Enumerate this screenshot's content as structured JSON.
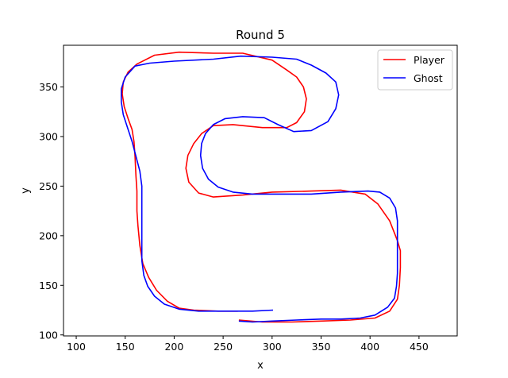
{
  "chart_data": {
    "type": "line",
    "title": "Round 5",
    "xlabel": "x",
    "ylabel": "y",
    "xlim": [
      87,
      489
    ],
    "ylim": [
      99,
      392
    ],
    "xticks": [
      100,
      150,
      200,
      250,
      300,
      350,
      400,
      450
    ],
    "yticks": [
      100,
      150,
      200,
      250,
      300,
      350
    ],
    "grid": false,
    "legend_position": "top-right",
    "series": [
      {
        "name": "Player",
        "color": "#ff0000",
        "points": [
          [
            266,
            115
          ],
          [
            290,
            113
          ],
          [
            320,
            113
          ],
          [
            350,
            114
          ],
          [
            380,
            115
          ],
          [
            405,
            117
          ],
          [
            420,
            124
          ],
          [
            428,
            136
          ],
          [
            430,
            150
          ],
          [
            431,
            168
          ],
          [
            431,
            185
          ],
          [
            428,
            195
          ],
          [
            420,
            215
          ],
          [
            408,
            232
          ],
          [
            395,
            242
          ],
          [
            370,
            246
          ],
          [
            340,
            245
          ],
          [
            300,
            244
          ],
          [
            270,
            241
          ],
          [
            240,
            239
          ],
          [
            225,
            243
          ],
          [
            215,
            254
          ],
          [
            212,
            268
          ],
          [
            214,
            281
          ],
          [
            220,
            293
          ],
          [
            228,
            303
          ],
          [
            240,
            311
          ],
          [
            260,
            312
          ],
          [
            290,
            309
          ],
          [
            315,
            309
          ],
          [
            325,
            314
          ],
          [
            333,
            325
          ],
          [
            335,
            338
          ],
          [
            332,
            350
          ],
          [
            325,
            360
          ],
          [
            315,
            367
          ],
          [
            300,
            377
          ],
          [
            270,
            384
          ],
          [
            240,
            384
          ],
          [
            205,
            385
          ],
          [
            180,
            382
          ],
          [
            162,
            373
          ],
          [
            153,
            365
          ],
          [
            148,
            355
          ],
          [
            147,
            343
          ],
          [
            149,
            330
          ],
          [
            153,
            318
          ],
          [
            157,
            307
          ],
          [
            159,
            295
          ],
          [
            160,
            280
          ],
          [
            161,
            260
          ],
          [
            162,
            245
          ],
          [
            162,
            225
          ],
          [
            163,
            210
          ],
          [
            165,
            190
          ],
          [
            168,
            172
          ],
          [
            174,
            158
          ],
          [
            182,
            145
          ],
          [
            193,
            134
          ],
          [
            205,
            127
          ],
          [
            220,
            125
          ],
          [
            245,
            124
          ],
          [
            265,
            124
          ]
        ]
      },
      {
        "name": "Ghost",
        "color": "#0000ff",
        "points": [
          [
            301,
            125
          ],
          [
            280,
            124
          ],
          [
            250,
            124
          ],
          [
            225,
            124
          ],
          [
            205,
            126
          ],
          [
            190,
            131
          ],
          [
            180,
            139
          ],
          [
            173,
            149
          ],
          [
            169,
            160
          ],
          [
            167,
            175
          ],
          [
            167,
            195
          ],
          [
            167,
            215
          ],
          [
            167,
            235
          ],
          [
            167,
            250
          ],
          [
            165,
            265
          ],
          [
            161,
            280
          ],
          [
            157,
            295
          ],
          [
            152,
            310
          ],
          [
            148,
            322
          ],
          [
            146,
            335
          ],
          [
            146,
            348
          ],
          [
            150,
            360
          ],
          [
            160,
            371
          ],
          [
            175,
            374
          ],
          [
            200,
            376
          ],
          [
            240,
            378
          ],
          [
            268,
            381
          ],
          [
            300,
            380
          ],
          [
            325,
            378
          ],
          [
            340,
            372
          ],
          [
            355,
            364
          ],
          [
            365,
            355
          ],
          [
            368,
            342
          ],
          [
            365,
            328
          ],
          [
            357,
            315
          ],
          [
            340,
            306
          ],
          [
            322,
            305
          ],
          [
            306,
            312
          ],
          [
            292,
            319
          ],
          [
            270,
            320
          ],
          [
            252,
            318
          ],
          [
            240,
            312
          ],
          [
            232,
            303
          ],
          [
            228,
            293
          ],
          [
            227,
            281
          ],
          [
            229,
            268
          ],
          [
            235,
            257
          ],
          [
            245,
            249
          ],
          [
            260,
            244
          ],
          [
            280,
            242
          ],
          [
            310,
            242
          ],
          [
            340,
            242
          ],
          [
            370,
            244
          ],
          [
            398,
            245
          ],
          [
            410,
            244
          ],
          [
            420,
            238
          ],
          [
            426,
            228
          ],
          [
            428,
            215
          ],
          [
            428,
            198
          ],
          [
            428,
            180
          ],
          [
            428,
            162
          ],
          [
            427,
            149
          ],
          [
            425,
            137
          ],
          [
            418,
            128
          ],
          [
            405,
            120
          ],
          [
            390,
            117
          ],
          [
            370,
            116
          ],
          [
            350,
            116
          ],
          [
            325,
            115
          ],
          [
            300,
            114
          ],
          [
            280,
            113
          ],
          [
            266,
            114
          ]
        ]
      }
    ]
  }
}
